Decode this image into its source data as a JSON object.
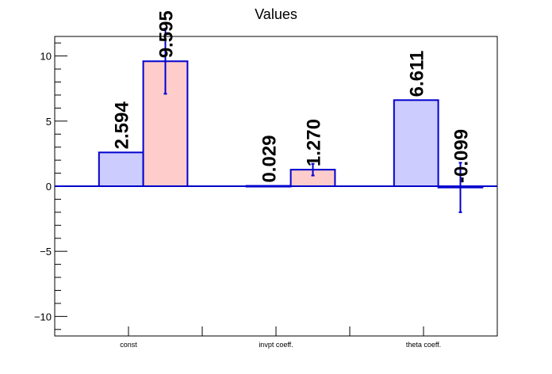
{
  "chart_data": {
    "type": "bar",
    "title": "Values",
    "xlabel": "",
    "ylabel": "",
    "categories": [
      "const",
      "invpt coeff.",
      "theta coeff."
    ],
    "ylim": [
      -11.5,
      11.5
    ],
    "yticks": [
      -10,
      -5,
      0,
      5,
      10
    ],
    "ytick_labels": [
      "−10",
      "−5",
      "0",
      "5",
      "10"
    ],
    "grid": false,
    "series": [
      {
        "color": "#ccccff",
        "edge_color": "#0000cc",
        "values": [
          2.594,
          0.029,
          6.611
        ],
        "labels": [
          "2.594",
          "0.029",
          "6.611"
        ],
        "errors": [
          null,
          null,
          null
        ]
      },
      {
        "color": "#ffcccc",
        "edge_color": "#0000cc",
        "values": [
          9.595,
          1.27,
          -0.099
        ],
        "labels": [
          "9.595",
          "1.270",
          "-0.099"
        ],
        "errors": [
          2.5,
          0.45,
          1.9
        ]
      }
    ]
  }
}
